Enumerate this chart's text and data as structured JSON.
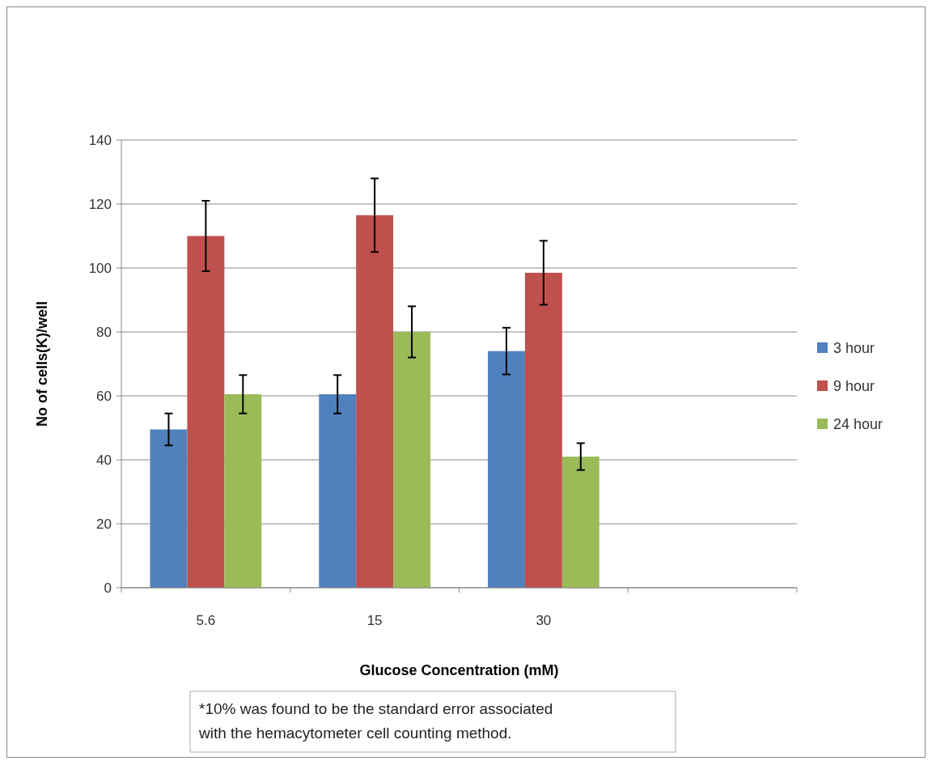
{
  "chart_data": {
    "type": "bar",
    "xlabel": "Glucose Concentration (mM)",
    "ylabel": "No of cells(K)/well",
    "categories": [
      "5.6",
      "15",
      "30",
      null
    ],
    "series": [
      {
        "name": "3 hour",
        "color": "#4f81bd",
        "values": [
          49.5,
          60.5,
          74,
          null
        ],
        "errors": [
          5,
          6,
          7.3,
          null
        ]
      },
      {
        "name": "9 hour",
        "color": "#c0504d",
        "values": [
          110,
          116.5,
          98.5,
          null
        ],
        "errors": [
          11,
          11.5,
          10,
          null
        ]
      },
      {
        "name": "24 hour",
        "color": "#9bbb59",
        "values": [
          60.5,
          80,
          41,
          null
        ],
        "errors": [
          6,
          8,
          4.2,
          null
        ]
      }
    ],
    "ylim": [
      0,
      140
    ],
    "yticks": [
      0,
      20,
      40,
      60,
      80,
      100,
      120,
      140
    ],
    "grid": "y",
    "legend": "right",
    "annotations": [
      "*10% was found to be the standard error associated with the hemacytometer cell counting method."
    ]
  }
}
